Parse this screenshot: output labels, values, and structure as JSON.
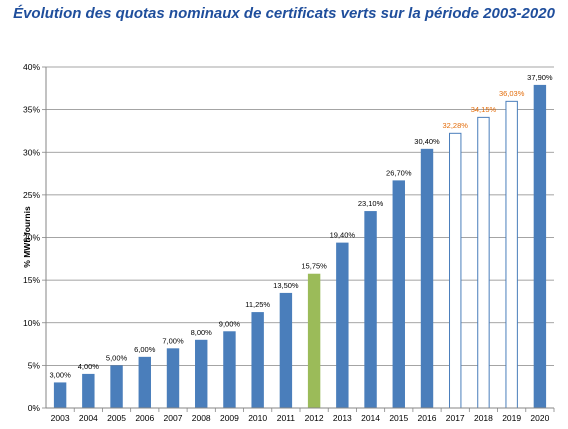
{
  "chart_data": {
    "type": "bar",
    "title": "Évolution des quotas nominaux de certificats verts sur la période 2003-2020",
    "xlabel": "",
    "ylabel": "% MWh fournis",
    "ylim": [
      0,
      40
    ],
    "yticks": [
      "0%",
      "5%",
      "10%",
      "15%",
      "20%",
      "25%",
      "30%",
      "35%",
      "40%"
    ],
    "grid": true,
    "categories": [
      "2003",
      "2004",
      "2005",
      "2006",
      "2007",
      "2008",
      "2009",
      "2010",
      "2011",
      "2012",
      "2013",
      "2014",
      "2015",
      "2016",
      "2017",
      "2018",
      "2019",
      "2020"
    ],
    "values": [
      3.0,
      4.0,
      5.0,
      6.0,
      7.0,
      8.0,
      9.0,
      11.25,
      13.5,
      15.75,
      19.4,
      23.1,
      26.7,
      30.4,
      32.28,
      34.15,
      36.03,
      37.9
    ],
    "labels": [
      "3,00%",
      "4,00%",
      "5,00%",
      "6,00%",
      "7,00%",
      "8,00%",
      "9,00%",
      "11,25%",
      "13,50%",
      "15,75%",
      "19,40%",
      "23,10%",
      "26,70%",
      "30,40%",
      "32,28%",
      "34,15%",
      "36,03%",
      "37,90%"
    ],
    "styles": [
      "solid",
      "solid",
      "solid",
      "solid",
      "solid",
      "solid",
      "solid",
      "solid",
      "solid",
      "highlight",
      "solid",
      "solid",
      "solid",
      "solid",
      "outline",
      "outline",
      "outline",
      "solid"
    ],
    "colors": {
      "solid": "#4a7ebb",
      "highlight": "#9bbb59",
      "outline_stroke": "#4a7ebb",
      "label": "#000000",
      "label_outline": "#e36c09",
      "grid": "#868686",
      "title": "#1f4e9c"
    }
  }
}
